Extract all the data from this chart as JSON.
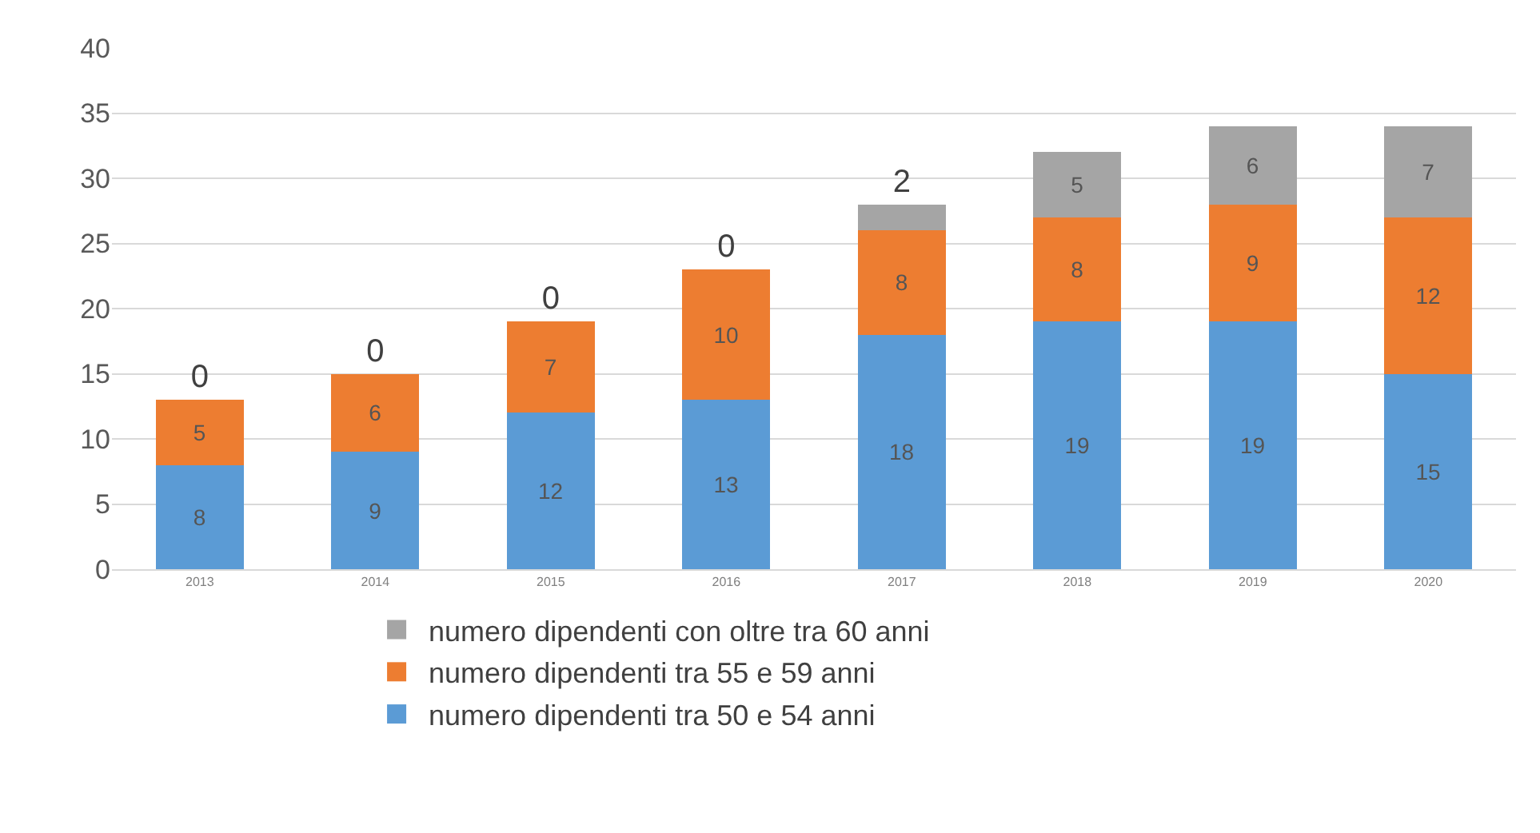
{
  "chart_data": {
    "type": "bar",
    "stacked": true,
    "categories": [
      "2013",
      "2014",
      "2015",
      "2016",
      "2017",
      "2018",
      "2019",
      "2020"
    ],
    "series": [
      {
        "name": "numero dipendenti tra 50 e 54 anni",
        "color": "#5b9bd5",
        "values": [
          8,
          9,
          12,
          13,
          18,
          19,
          19,
          15
        ]
      },
      {
        "name": "numero dipendenti tra 55 e 59 anni",
        "color": "#ed7d31",
        "values": [
          5,
          6,
          7,
          10,
          8,
          8,
          9,
          12
        ]
      },
      {
        "name": "numero dipendenti con oltre tra 60 anni",
        "color": "#a5a5a5",
        "values": [
          0,
          0,
          0,
          0,
          2,
          5,
          6,
          7
        ]
      }
    ],
    "ylim": [
      0,
      40
    ],
    "yticks": [
      0,
      5,
      10,
      15,
      20,
      25,
      30,
      35,
      40
    ],
    "grid": "y",
    "legend": "bottom",
    "data_labels": true
  }
}
